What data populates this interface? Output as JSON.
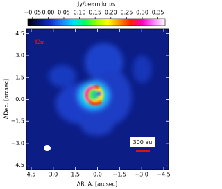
{
  "chart_data": {
    "type": "image",
    "colorbar_label": "Jy/beam.km/s",
    "xlabel": "ΔR. A. [arcsec]",
    "ylabel": "ΔDec. [arcsec]",
    "annotations": [
      "12m",
      "300 au"
    ],
    "xlim": [
      4.83,
      -4.83
    ],
    "ylim": [
      -4.8,
      4.8
    ],
    "xticks": [
      {
        "value": 4.5,
        "label": "4.5"
      },
      {
        "value": 3,
        "label": "3.0"
      },
      {
        "value": 1.5,
        "label": "1.5"
      },
      {
        "value": 0,
        "label": "0.0"
      },
      {
        "value": -1.5,
        "label": "−1.5"
      },
      {
        "value": -3,
        "label": "−3.0"
      },
      {
        "value": -4.5,
        "label": "−4.5"
      }
    ],
    "yticks": [
      {
        "value": 4.5,
        "label": "4.5"
      },
      {
        "value": 3,
        "label": "3.0"
      },
      {
        "value": 1.5,
        "label": "1.5"
      },
      {
        "value": 0,
        "label": "0.0"
      },
      {
        "value": -1.5,
        "label": "−1.5"
      },
      {
        "value": -3,
        "label": "−3.0"
      },
      {
        "value": -4.5,
        "label": "−4.5"
      }
    ],
    "clim": [
      -0.065,
      0.373
    ],
    "cticks": [
      {
        "value": -0.05,
        "label": "−0.05"
      },
      {
        "value": 0,
        "label": "0.00"
      },
      {
        "value": 0.05,
        "label": "0.05"
      },
      {
        "value": 0.1,
        "label": "0.10"
      },
      {
        "value": 0.15,
        "label": "0.15"
      },
      {
        "value": 0.2,
        "label": "0.20"
      },
      {
        "value": 0.25,
        "label": "0.25"
      },
      {
        "value": 0.3,
        "label": "0.30"
      },
      {
        "value": 0.35,
        "label": "0.35"
      }
    ],
    "colormap": [
      "#000000",
      "#0a1470",
      "#1030d0",
      "#2080ff",
      "#00e0ff",
      "#00ff60",
      "#a0ff00",
      "#ffff00",
      "#ff9000",
      "#ff2000",
      "#ff00c0",
      "#ff80ff",
      "#ffffff"
    ]
  }
}
